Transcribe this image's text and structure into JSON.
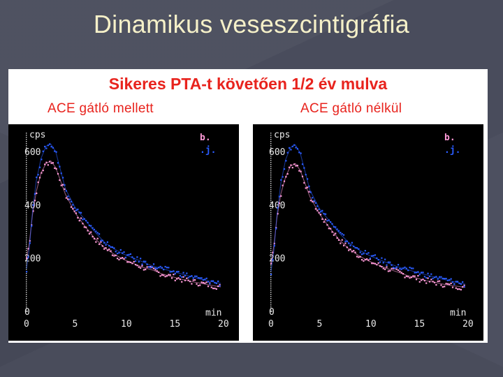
{
  "slide": {
    "title": "Dinamikus veseszcintigráfia"
  },
  "panel": {
    "title": "Sikeres PTA-t követően 1/2 év mulva",
    "left_label": "ACE gátló mellett",
    "right_label": "ACE gátló nélkül"
  },
  "colors": {
    "background": "#494c5c",
    "title_text": "#f5f0c8",
    "panel_title": "#e8231d",
    "plot_bg": "#000000",
    "series_b": "#ff9ad8",
    "series_j": "#2a5cff"
  },
  "chart_data": [
    {
      "type": "scatter",
      "title": "ACE gátló mellett",
      "ylabel": "cps",
      "xlabel": "min",
      "xlim": [
        0,
        20
      ],
      "ylim": [
        0,
        650
      ],
      "xticks": [
        "0",
        "5",
        "10",
        "15",
        "20"
      ],
      "yticks": [
        "0",
        "200",
        "400",
        "600"
      ],
      "legend": [
        "b.",
        ".j."
      ],
      "series": [
        {
          "name": "b.",
          "color": "#ff9ad8",
          "x": [
            0,
            0.3,
            0.6,
            1,
            1.5,
            2,
            2.5,
            3,
            3.5,
            4,
            5,
            6,
            7,
            8,
            9,
            10,
            11,
            12,
            13,
            14,
            15,
            16,
            17,
            18,
            19,
            20
          ],
          "y": [
            200,
            260,
            360,
            450,
            520,
            555,
            565,
            540,
            490,
            440,
            370,
            320,
            275,
            240,
            215,
            195,
            180,
            165,
            155,
            140,
            130,
            120,
            112,
            105,
            98,
            92
          ]
        },
        {
          "name": ".j.",
          "color": "#2a5cff",
          "x": [
            0,
            0.3,
            0.6,
            1,
            1.5,
            2,
            2.5,
            3,
            3.5,
            4,
            5,
            6,
            7,
            8,
            9,
            10,
            11,
            12,
            13,
            14,
            15,
            16,
            17,
            18,
            19,
            20
          ],
          "y": [
            160,
            240,
            370,
            490,
            575,
            620,
            628,
            600,
            530,
            460,
            390,
            345,
            300,
            260,
            235,
            215,
            200,
            185,
            170,
            160,
            150,
            140,
            130,
            120,
            112,
            105
          ]
        }
      ]
    },
    {
      "type": "scatter",
      "title": "ACE gátló nélkül",
      "ylabel": "cps",
      "xlabel": "min",
      "xlim": [
        0,
        20
      ],
      "ylim": [
        0,
        650
      ],
      "xticks": [
        "0",
        "5",
        "10",
        "15",
        "20"
      ],
      "yticks": [
        "0",
        "200",
        "400",
        "600"
      ],
      "legend": [
        "b.",
        ".j."
      ],
      "series": [
        {
          "name": "b.",
          "color": "#ff9ad8",
          "x": [
            0,
            0.3,
            0.6,
            1,
            1.5,
            2,
            2.5,
            3,
            3.5,
            4,
            5,
            6,
            7,
            8,
            9,
            10,
            11,
            12,
            13,
            14,
            15,
            16,
            17,
            18,
            19,
            20
          ],
          "y": [
            180,
            250,
            350,
            440,
            505,
            545,
            555,
            530,
            480,
            430,
            365,
            315,
            270,
            235,
            210,
            190,
            175,
            160,
            148,
            135,
            125,
            115,
            108,
            100,
            95,
            90
          ]
        },
        {
          "name": ".j.",
          "color": "#2a5cff",
          "x": [
            0,
            0.3,
            0.6,
            1,
            1.5,
            2,
            2.5,
            3,
            3.5,
            4,
            5,
            6,
            7,
            8,
            9,
            10,
            11,
            12,
            13,
            14,
            15,
            16,
            17,
            18,
            19,
            20
          ],
          "y": [
            150,
            230,
            360,
            480,
            570,
            615,
            625,
            595,
            525,
            455,
            385,
            340,
            295,
            258,
            232,
            212,
            196,
            182,
            168,
            157,
            147,
            137,
            127,
            118,
            110,
            102
          ]
        }
      ]
    }
  ]
}
